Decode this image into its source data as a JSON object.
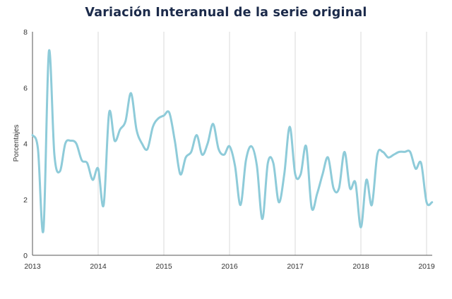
{
  "chart_data": {
    "type": "line",
    "title": "Variación Interanual de la serie original",
    "xlabel": "",
    "ylabel": "Porcentajes",
    "xlim": [
      "2013-01",
      "2019-01"
    ],
    "ylim": [
      0,
      8
    ],
    "x_ticks": [
      "2013",
      "2014",
      "2015",
      "2016",
      "2017",
      "2018",
      "2019"
    ],
    "y_ticks": [
      "0",
      "2",
      "4",
      "6",
      "8"
    ],
    "grid": "vertical",
    "legend": "none",
    "line_color": "#8ecbd9",
    "series": [
      {
        "name": "",
        "x": [
          "2013-01",
          "2013-02",
          "2013-03",
          "2013-04",
          "2013-05",
          "2013-06",
          "2013-07",
          "2013-08",
          "2013-09",
          "2013-10",
          "2013-11",
          "2013-12",
          "2014-01",
          "2014-02",
          "2014-03",
          "2014-04",
          "2014-05",
          "2014-06",
          "2014-07",
          "2014-08",
          "2014-09",
          "2014-10",
          "2014-11",
          "2014-12",
          "2015-01",
          "2015-02",
          "2015-03",
          "2015-04",
          "2015-05",
          "2015-06",
          "2015-07",
          "2015-08",
          "2015-09",
          "2015-10",
          "2015-11",
          "2015-12",
          "2016-01",
          "2016-02",
          "2016-03",
          "2016-04",
          "2016-05",
          "2016-06",
          "2016-07",
          "2016-08",
          "2016-09",
          "2016-10",
          "2016-11",
          "2016-12",
          "2017-01",
          "2017-02",
          "2017-03",
          "2017-04",
          "2017-05",
          "2017-06",
          "2017-07",
          "2017-08",
          "2017-09",
          "2017-10",
          "2017-11",
          "2017-12",
          "2018-01",
          "2018-02",
          "2018-03",
          "2018-04",
          "2018-05",
          "2018-06",
          "2018-07",
          "2018-08",
          "2018-09",
          "2018-10",
          "2018-11",
          "2018-12",
          "2019-01",
          "2019-02"
        ],
        "values": [
          4.3,
          3.8,
          0.9,
          7.3,
          3.6,
          3.0,
          4.0,
          4.1,
          4.0,
          3.4,
          3.3,
          2.7,
          3.1,
          1.8,
          5.1,
          4.1,
          4.5,
          4.8,
          5.8,
          4.5,
          4.0,
          3.8,
          4.6,
          4.9,
          5.0,
          5.1,
          4.1,
          2.9,
          3.5,
          3.7,
          4.3,
          3.6,
          4.0,
          4.7,
          3.8,
          3.6,
          3.9,
          3.2,
          1.8,
          3.4,
          3.9,
          3.2,
          1.3,
          3.3,
          3.3,
          1.9,
          2.9,
          4.6,
          2.9,
          2.9,
          3.9,
          1.7,
          2.2,
          2.9,
          3.5,
          2.4,
          2.4,
          3.7,
          2.4,
          2.6,
          1.0,
          2.7,
          1.8,
          3.6,
          3.7,
          3.5,
          3.6,
          3.7,
          3.7,
          3.7,
          3.1,
          3.3,
          1.9,
          1.9
        ]
      }
    ]
  }
}
